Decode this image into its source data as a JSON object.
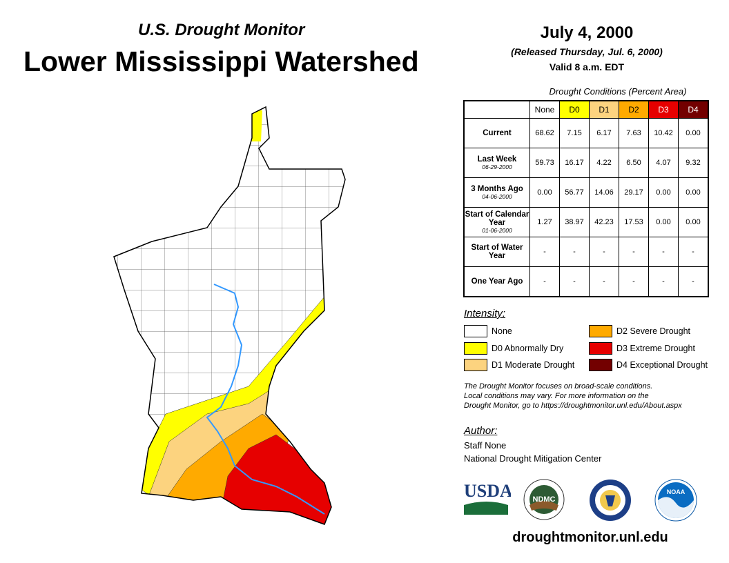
{
  "header": {
    "subtitle": "U.S. Drought Monitor",
    "title": "Lower Mississippi Watershed",
    "date": "July 4, 2000",
    "released": "(Released Thursday, Jul. 6, 2000)",
    "valid": "Valid 8 a.m. EDT"
  },
  "table": {
    "caption": "Drought Conditions (Percent Area)",
    "columns": [
      "None",
      "D0",
      "D1",
      "D2",
      "D3",
      "D4"
    ],
    "rows": [
      {
        "label": "Current",
        "date": "",
        "values": [
          "68.62",
          "7.15",
          "6.17",
          "7.63",
          "10.42",
          "0.00"
        ]
      },
      {
        "label": "Last Week",
        "date": "06-29-2000",
        "values": [
          "59.73",
          "16.17",
          "4.22",
          "6.50",
          "4.07",
          "9.32"
        ]
      },
      {
        "label": "3 Months Ago",
        "date": "04-06-2000",
        "values": [
          "0.00",
          "56.77",
          "14.06",
          "29.17",
          "0.00",
          "0.00"
        ]
      },
      {
        "label": "Start of Calendar Year",
        "date": "01-06-2000",
        "values": [
          "1.27",
          "38.97",
          "42.23",
          "17.53",
          "0.00",
          "0.00"
        ]
      },
      {
        "label": "Start of Water Year",
        "date": "",
        "values": [
          "-",
          "-",
          "-",
          "-",
          "-",
          "-"
        ]
      },
      {
        "label": "One Year Ago",
        "date": "",
        "values": [
          "-",
          "-",
          "-",
          "-",
          "-",
          "-"
        ]
      }
    ]
  },
  "colors": {
    "None": "#ffffff",
    "D0": "#ffff00",
    "D1": "#fcd37f",
    "D2": "#ffaa00",
    "D3": "#e60000",
    "D4": "#730000",
    "river": "#3399ff"
  },
  "legend": {
    "heading": "Intensity:",
    "items": [
      "None",
      "D0 Abnormally Dry",
      "D1 Moderate Drought",
      "D2 Severe Drought",
      "D3 Extreme Drought",
      "D4 Exceptional Drought"
    ]
  },
  "note": [
    "The Drought Monitor focuses on broad-scale conditions.",
    "Local conditions may vary. For more information on the",
    "Drought Monitor, go to https://droughtmonitor.unl.edu/About.aspx"
  ],
  "author": {
    "heading": "Author:",
    "name": "Staff None",
    "org": "National Drought Mitigation Center"
  },
  "logos": {
    "usda": "USDA",
    "ndmc": "NDMC",
    "noaa": "NOAA"
  },
  "footer_url": "droughtmonitor.unl.edu"
}
